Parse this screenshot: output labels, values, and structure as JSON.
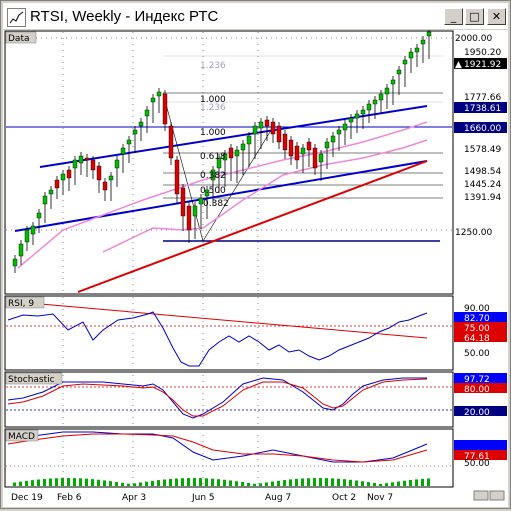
{
  "window": {
    "title": "RTSI, Weekly - Индекс РТС",
    "buttons": {
      "minimize": "_",
      "maximize": "□",
      "close": "✕"
    }
  },
  "panels": {
    "data": {
      "label": "Data"
    },
    "rsi": {
      "label": "RSI, 9"
    },
    "stochastic": {
      "label": "Stochastic"
    },
    "macd": {
      "label": "MACD"
    }
  },
  "price_axis": {
    "ticks": [
      "2000.00",
      "1250.00"
    ],
    "markers": [
      {
        "text": "1950.20",
        "style": "plain"
      },
      {
        "text": "1921.92",
        "style": "black-arrow"
      },
      {
        "text": "1777.66",
        "style": "plain"
      },
      {
        "text": "1738.61",
        "style": "navy"
      },
      {
        "text": "1660.00",
        "style": "navy"
      },
      {
        "text": "1578.49",
        "style": "plain"
      },
      {
        "text": "1498.54",
        "style": "plain"
      },
      {
        "text": "1445.24",
        "style": "plain"
      },
      {
        "text": "1391.94",
        "style": "plain"
      }
    ]
  },
  "fib_labels": [
    "1.236",
    "1.000",
    "1.236",
    "1.000",
    "0.618",
    "0.382",
    "0.500",
    "0.382"
  ],
  "rsi_axis": {
    "ticks": [
      "90.00",
      "50.00"
    ],
    "markers": [
      "82.70",
      "75.00",
      "64.18"
    ]
  },
  "stoch_axis": {
    "markers": [
      "97.72",
      "80.00",
      "20.00"
    ]
  },
  "macd_axis": {
    "ticks": [
      "50.00"
    ],
    "markers": [
      "77.61"
    ]
  },
  "time_axis": {
    "labels": [
      "Dec 19",
      "Feb 6",
      "Apr 3",
      "Jun 5",
      "Aug 7",
      "Oct 2",
      "Nov 7"
    ]
  },
  "colors": {
    "navy_marker": "#000080",
    "trend_blue": "#0000cc",
    "trend_red": "#dd0000",
    "ma_pink": "#ee88dd",
    "bull_candle": "#00bb00",
    "bear_candle": "#dd0000"
  },
  "chart_data": {
    "type": "candlestick",
    "series": [
      {
        "name": "RSI, 9",
        "values": [
          82.7
        ]
      },
      {
        "name": "Stochastic",
        "values": [
          97.72
        ]
      },
      {
        "name": "MACD",
        "values": [
          77.61
        ]
      }
    ],
    "last_price": 1921.92,
    "y_ticks": [
      1250.0,
      2000.0
    ],
    "x_labels": [
      "Dec 19",
      "Feb 6",
      "Apr 3",
      "Jun 5",
      "Aug 7",
      "Oct 2",
      "Nov 7"
    ]
  }
}
